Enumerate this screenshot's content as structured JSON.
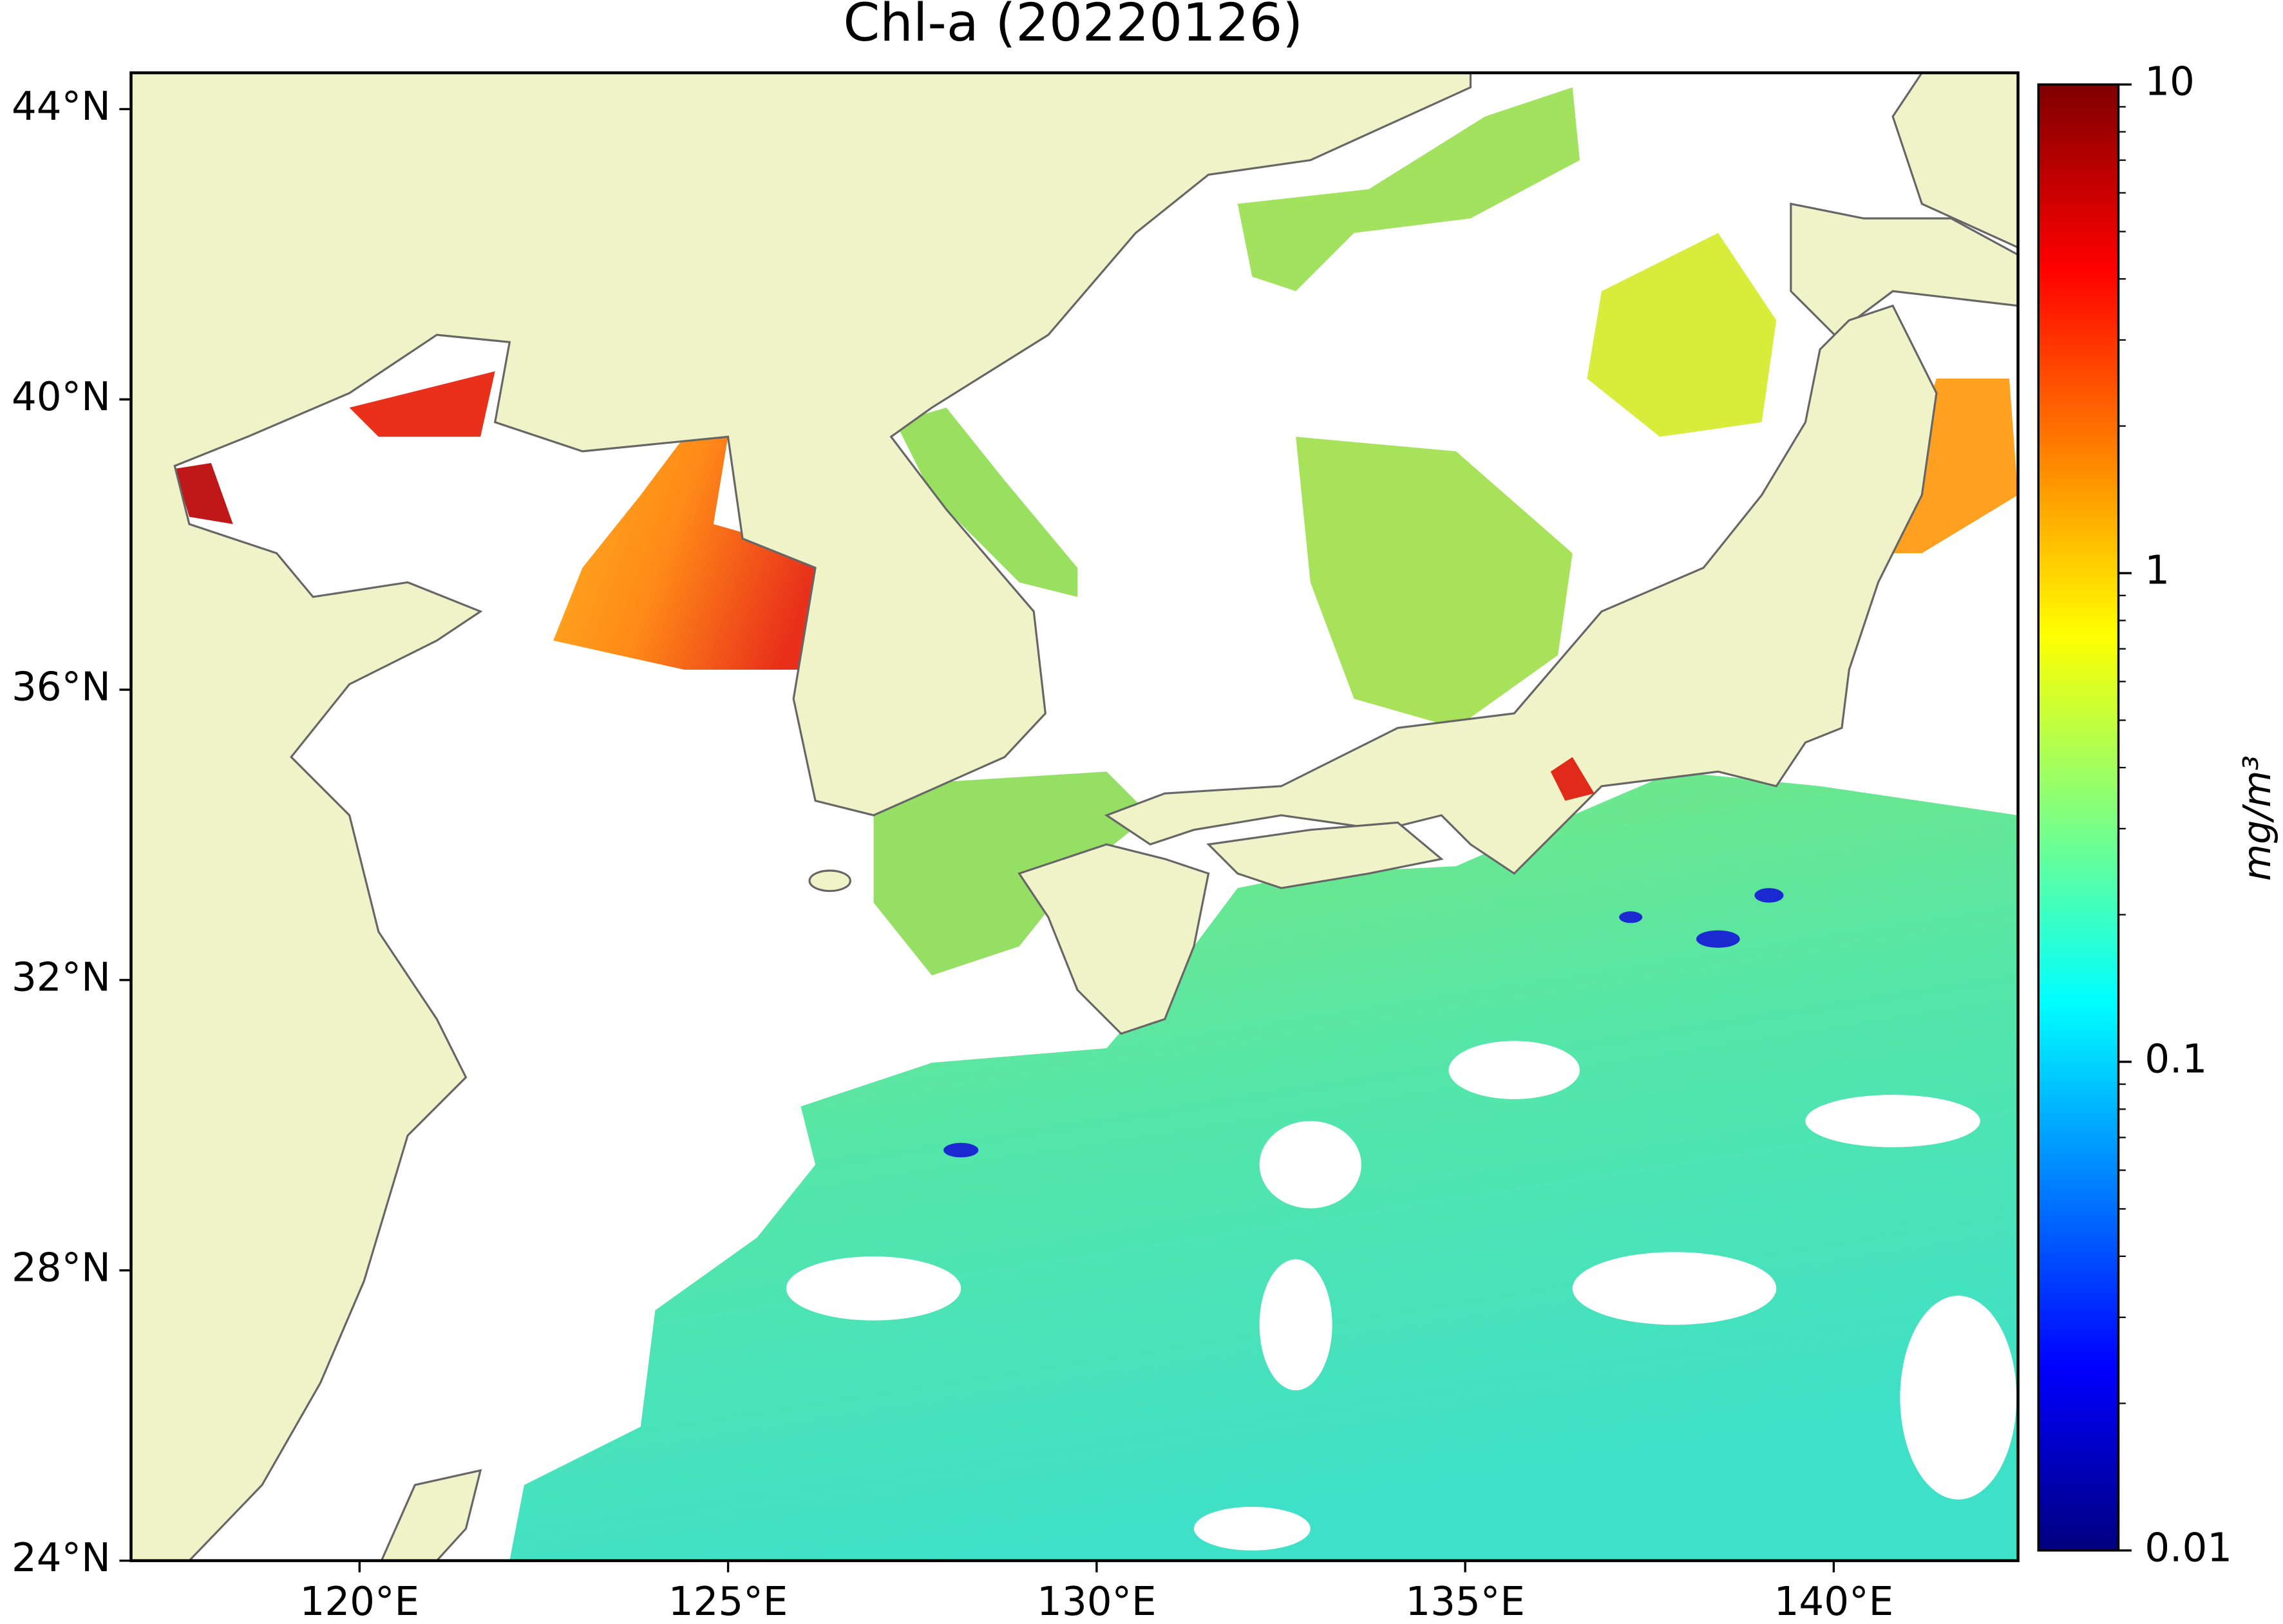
{
  "chart_data": {
    "type": "map",
    "title": "Chl-a (20220126)",
    "xlim": [
      116.9,
      142.5
    ],
    "ylim": [
      24,
      44.5
    ],
    "xticks": [
      {
        "value": 120,
        "label": "120°E"
      },
      {
        "value": 125,
        "label": "125°E"
      },
      {
        "value": 130,
        "label": "130°E"
      },
      {
        "value": 135,
        "label": "135°E"
      },
      {
        "value": 140,
        "label": "140°E"
      }
    ],
    "yticks": [
      {
        "value": 24,
        "label": "24°N"
      },
      {
        "value": 28,
        "label": "28°N"
      },
      {
        "value": 32,
        "label": "32°N"
      },
      {
        "value": 36,
        "label": "36°N"
      },
      {
        "value": 40,
        "label": "40°N"
      },
      {
        "value": 44,
        "label": "44°N"
      }
    ],
    "colorbar": {
      "label": "mg/m³",
      "lim": [
        0.01,
        10
      ],
      "ticks": [
        0.01,
        0.1,
        1,
        10
      ],
      "log": true
    }
  }
}
